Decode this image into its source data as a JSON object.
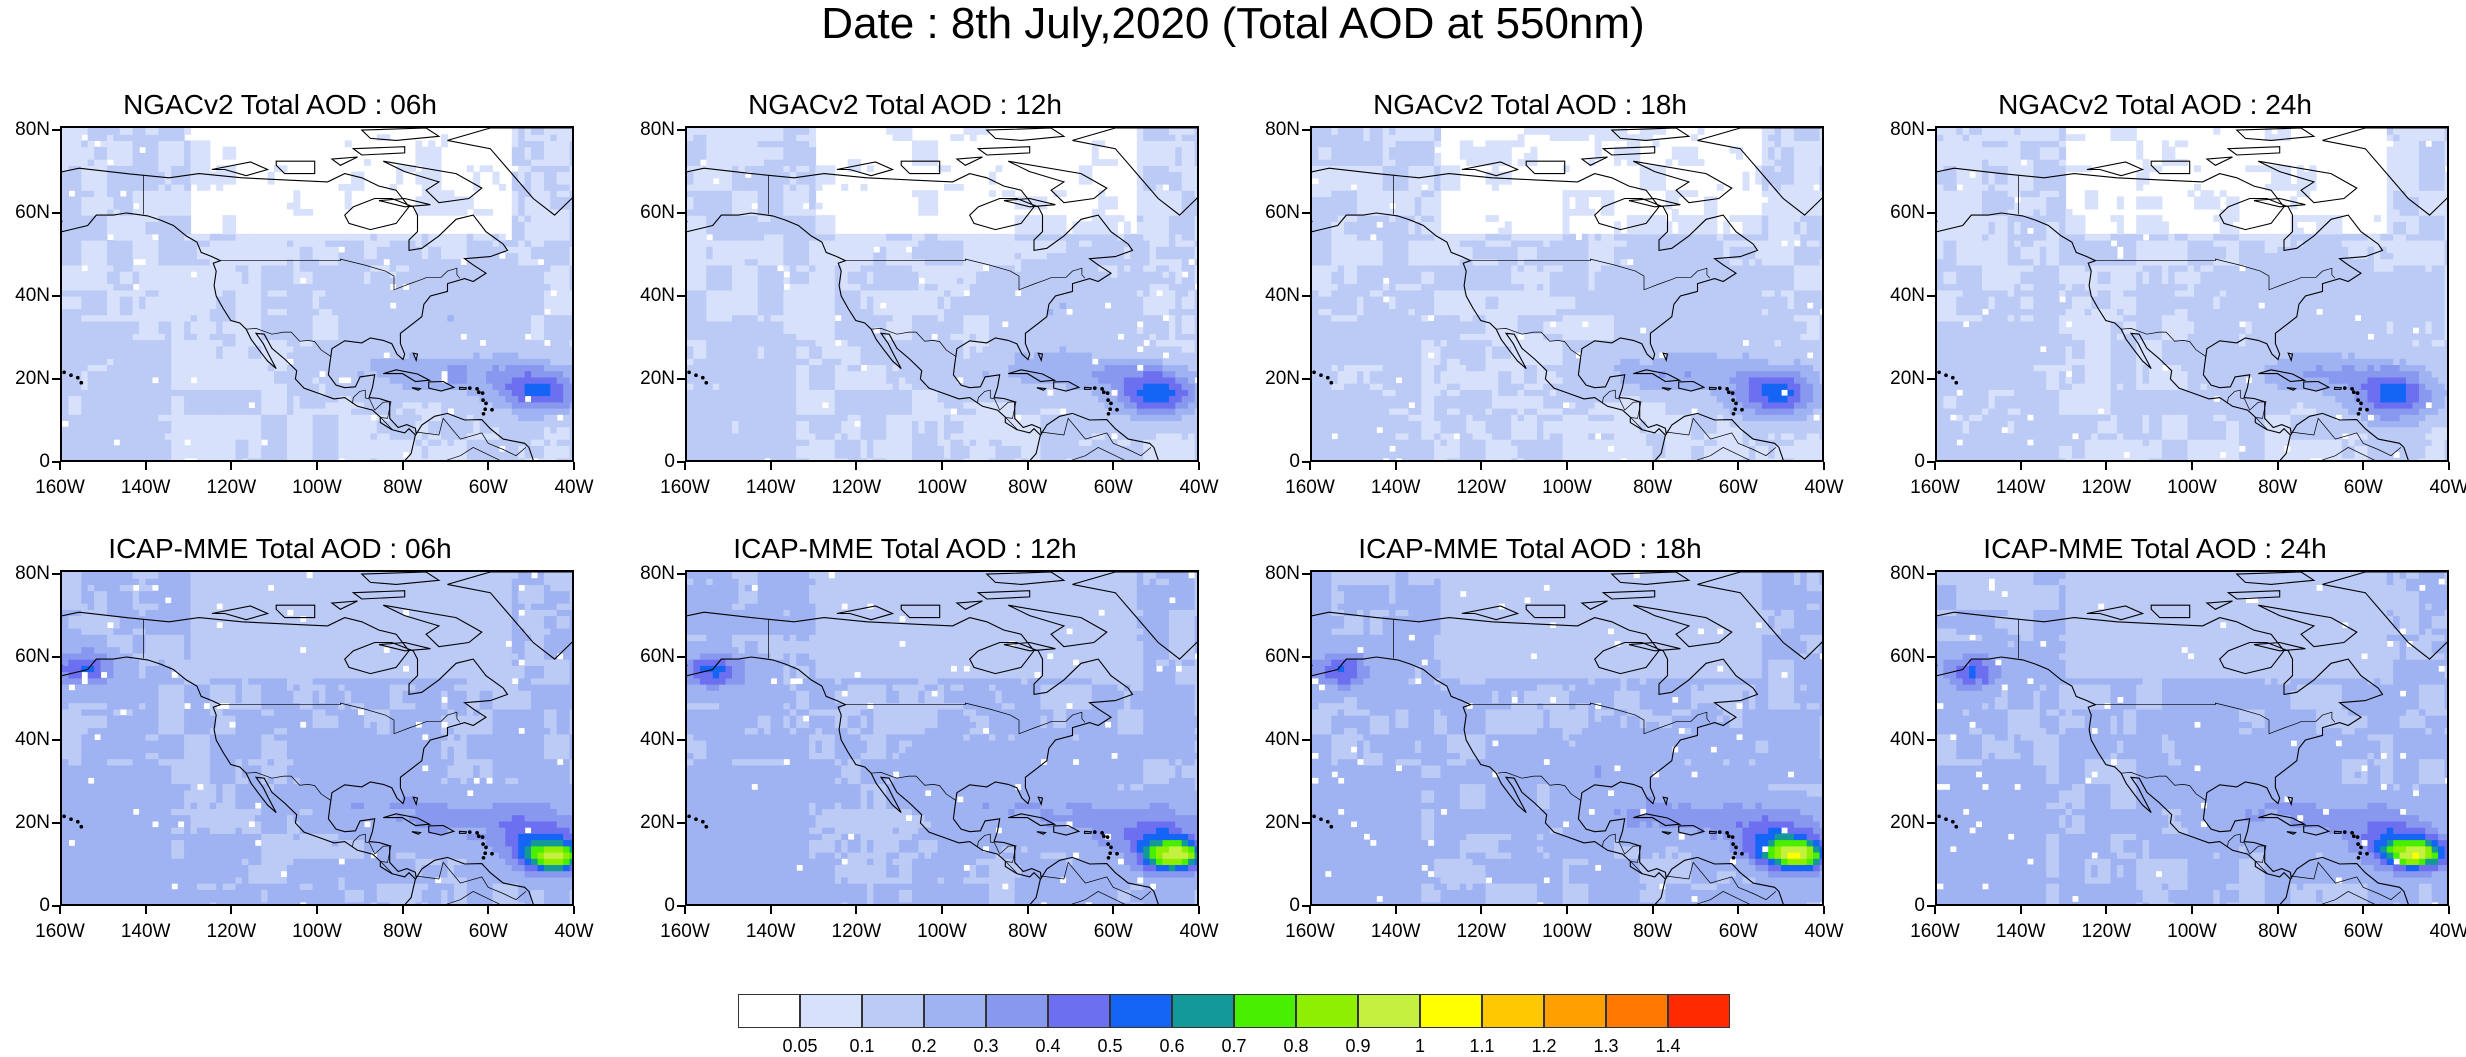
{
  "title": "Date : 8th July,2020 (Total AOD at 550nm)",
  "panels": [
    {
      "title": "NGACv2 Total AOD : 06h",
      "model": "NGACv2",
      "hour": 6
    },
    {
      "title": "NGACv2 Total AOD : 12h",
      "model": "NGACv2",
      "hour": 12
    },
    {
      "title": "NGACv2 Total AOD : 18h",
      "model": "NGACv2",
      "hour": 18
    },
    {
      "title": "NGACv2 Total AOD : 24h",
      "model": "NGACv2",
      "hour": 24
    },
    {
      "title": "ICAP-MME Total AOD : 06h",
      "model": "ICAP-MME",
      "hour": 6
    },
    {
      "title": "ICAP-MME Total AOD : 12h",
      "model": "ICAP-MME",
      "hour": 12
    },
    {
      "title": "ICAP-MME Total AOD : 18h",
      "model": "ICAP-MME",
      "hour": 18
    },
    {
      "title": "ICAP-MME Total AOD : 24h",
      "model": "ICAP-MME",
      "hour": 24
    }
  ],
  "axes": {
    "lat_labels": [
      "0",
      "20N",
      "40N",
      "60N",
      "80N"
    ],
    "lon_labels": [
      "160W",
      "140W",
      "120W",
      "100W",
      "80W",
      "60W",
      "40W"
    ]
  },
  "colorbar": {
    "labels": [
      "0.05",
      "0.1",
      "0.2",
      "0.3",
      "0.4",
      "0.5",
      "0.6",
      "0.7",
      "0.8",
      "0.9",
      "1",
      "1.1",
      "1.2",
      "1.3",
      "1.4"
    ],
    "colors": [
      "#ffffff",
      "#d7e1fb",
      "#bccaf6",
      "#9fb2f2",
      "#8898ef",
      "#6c6ff0",
      "#1464f5",
      "#129998",
      "#48f000",
      "#8ef000",
      "#c4f040",
      "#ffff00",
      "#ffc800",
      "#ffa000",
      "#ff7800",
      "#ff2a00"
    ]
  }
}
